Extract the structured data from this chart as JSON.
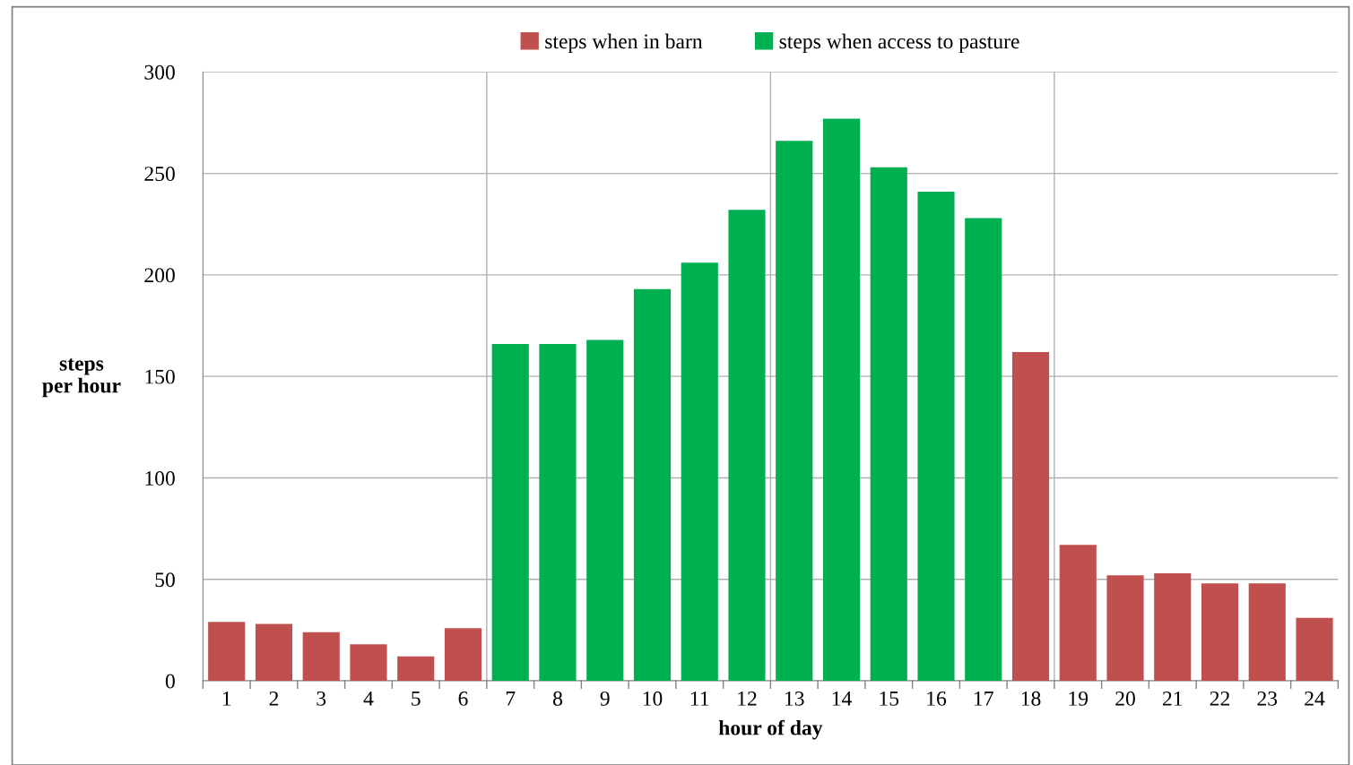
{
  "chart_data": {
    "type": "bar",
    "xlabel": "hour of day",
    "ylabel": "steps\nper hour",
    "categories": [
      "1",
      "2",
      "3",
      "4",
      "5",
      "6",
      "7",
      "8",
      "9",
      "10",
      "11",
      "12",
      "13",
      "14",
      "15",
      "16",
      "17",
      "18",
      "19",
      "20",
      "21",
      "22",
      "23",
      "24"
    ],
    "series": [
      {
        "name": "steps when in barn",
        "color": "#c0504d",
        "values": [
          29,
          28,
          24,
          18,
          12,
          26,
          null,
          null,
          null,
          null,
          null,
          null,
          null,
          null,
          null,
          null,
          null,
          162,
          67,
          52,
          53,
          48,
          48,
          31
        ]
      },
      {
        "name": "steps when access to pasture",
        "color": "#00b050",
        "values": [
          null,
          null,
          null,
          null,
          null,
          null,
          166,
          166,
          168,
          193,
          206,
          232,
          266,
          277,
          253,
          241,
          228,
          null,
          null,
          null,
          null,
          null,
          null,
          null
        ]
      }
    ],
    "ylim": [
      0,
      300
    ],
    "yticks": [
      0,
      50,
      100,
      150,
      200,
      250,
      300
    ],
    "grid": true,
    "legend": "top"
  }
}
